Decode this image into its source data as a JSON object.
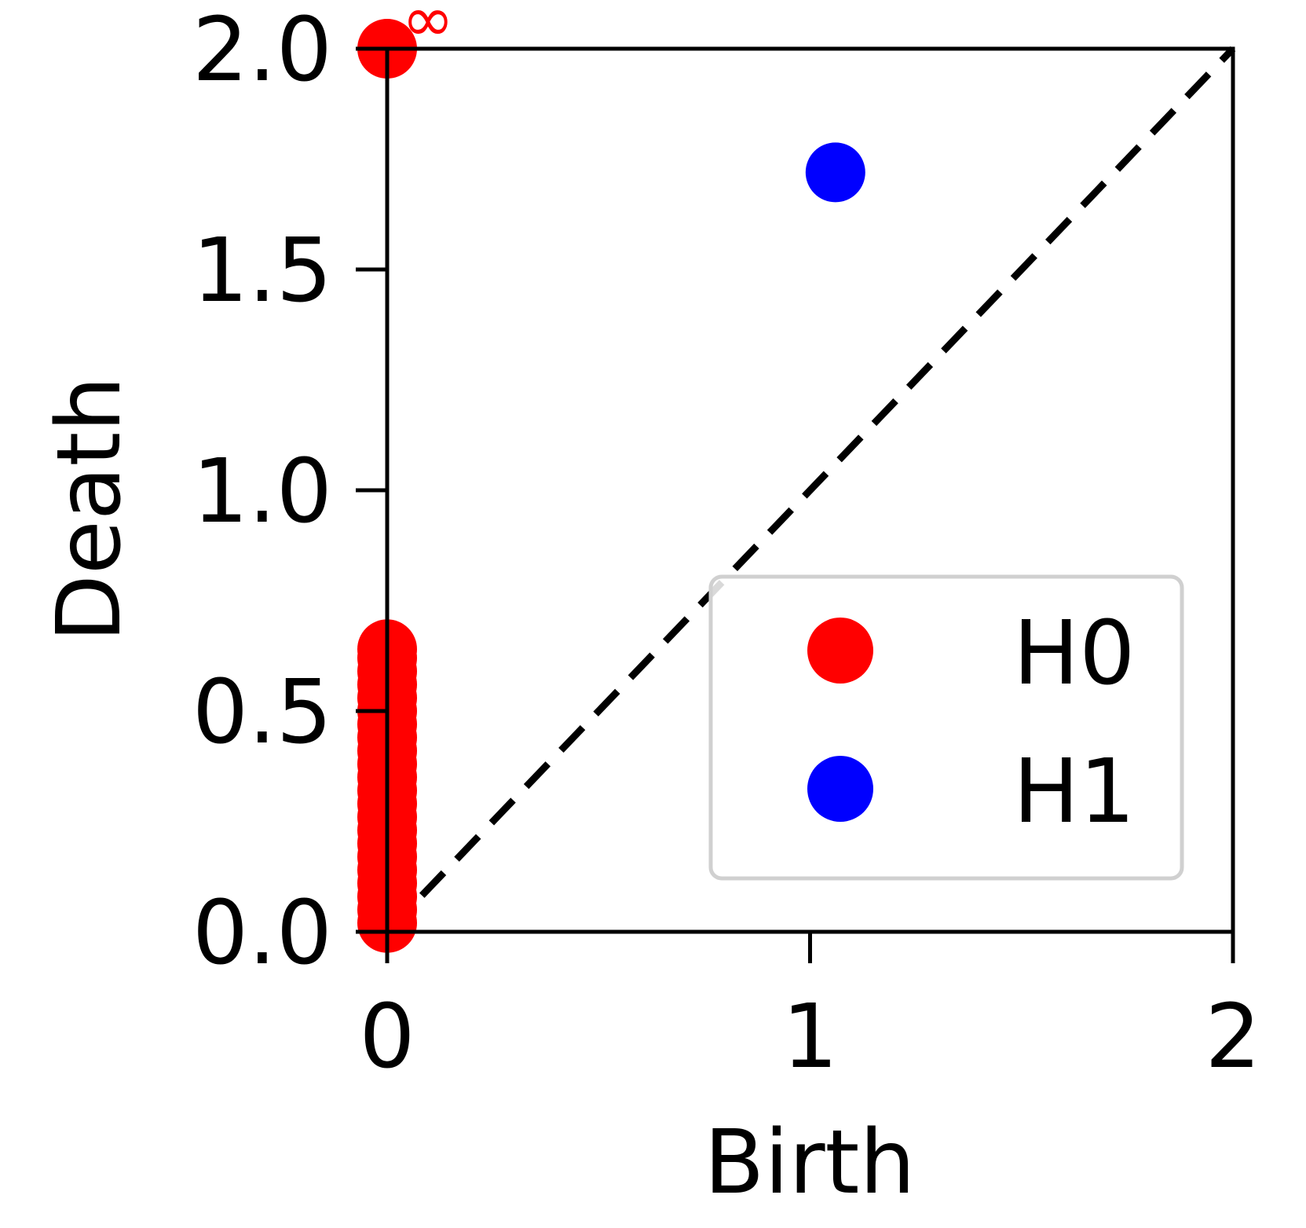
{
  "chart_data": {
    "type": "scatter",
    "title": "",
    "xlabel": "Birth",
    "ylabel": "Death",
    "xlim": [
      0,
      2
    ],
    "ylim": [
      0,
      2
    ],
    "x_ticks": [
      "0",
      "1",
      "2"
    ],
    "y_ticks": [
      "0.0",
      "0.5",
      "1.0",
      "1.5",
      "2.0"
    ],
    "grid": false,
    "legend_position": "lower-right",
    "diagonal": {
      "style": "dashed",
      "color": "#000000"
    },
    "infinity_label": "∞",
    "series": [
      {
        "name": "H0",
        "color": "#ff0000",
        "points": [
          {
            "x": 0,
            "y": 0.02
          },
          {
            "x": 0,
            "y": 0.05
          },
          {
            "x": 0,
            "y": 0.08
          },
          {
            "x": 0,
            "y": 0.11
          },
          {
            "x": 0,
            "y": 0.14
          },
          {
            "x": 0,
            "y": 0.17
          },
          {
            "x": 0,
            "y": 0.2
          },
          {
            "x": 0,
            "y": 0.23
          },
          {
            "x": 0,
            "y": 0.26
          },
          {
            "x": 0,
            "y": 0.29
          },
          {
            "x": 0,
            "y": 0.32
          },
          {
            "x": 0,
            "y": 0.35
          },
          {
            "x": 0,
            "y": 0.38
          },
          {
            "x": 0,
            "y": 0.41
          },
          {
            "x": 0,
            "y": 0.44
          },
          {
            "x": 0,
            "y": 0.47
          },
          {
            "x": 0,
            "y": 0.5
          },
          {
            "x": 0,
            "y": 0.53
          },
          {
            "x": 0,
            "y": 0.56
          },
          {
            "x": 0,
            "y": 0.59
          },
          {
            "x": 0,
            "y": 0.62
          },
          {
            "x": 0,
            "y": 0.64
          },
          {
            "x": 0,
            "y": 2.0,
            "infinite": true
          }
        ]
      },
      {
        "name": "H1",
        "color": "#0000ff",
        "points": [
          {
            "x": 1.06,
            "y": 1.72
          }
        ]
      }
    ]
  }
}
